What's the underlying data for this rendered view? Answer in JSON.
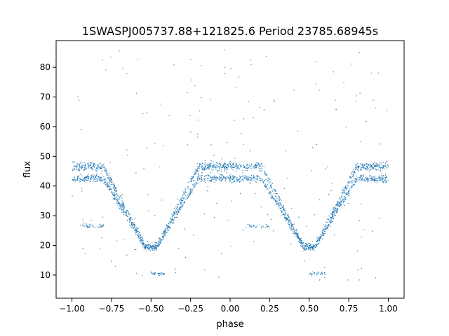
{
  "chart_data": {
    "type": "scatter",
    "title": "1SWASPJ005737.88+121825.6 Period 23785.68945s",
    "xlabel": "phase",
    "ylabel": "flux",
    "xlim": [
      -1.1,
      1.1
    ],
    "ylim": [
      2.2,
      89.0
    ],
    "xticks": [
      -1.0,
      -0.75,
      -0.5,
      -0.25,
      0.0,
      0.25,
      0.5,
      0.75,
      1.0
    ],
    "xtick_labels": [
      "−1.00",
      "−0.75",
      "−0.50",
      "−0.25",
      "0.00",
      "0.25",
      "0.50",
      "0.75",
      "1.00"
    ],
    "yticks": [
      10,
      20,
      30,
      40,
      50,
      60,
      70,
      80
    ],
    "ytick_labels": [
      "10",
      "20",
      "30",
      "40",
      "50",
      "60",
      "70",
      "80"
    ],
    "grid": false,
    "point_color": "#1f77b4",
    "light_curve": {
      "baseline_upper_flux": 46.5,
      "baseline_lower_flux": 42.5,
      "eclipse_centers": [
        -0.5,
        0.5
      ],
      "eclipse_minimum_flux": 19.5,
      "eclipse_half_width": 0.3,
      "secondary_features": [
        {
          "x_range": [
            -0.95,
            -0.8
          ],
          "flux": 26.5
        },
        {
          "x_range": [
            0.1,
            0.25
          ],
          "flux": 26.5
        },
        {
          "x_range": [
            -0.5,
            -0.4
          ],
          "flux": 10.5
        },
        {
          "x_range": [
            0.5,
            0.6
          ],
          "flux": 10.5
        }
      ]
    }
  }
}
